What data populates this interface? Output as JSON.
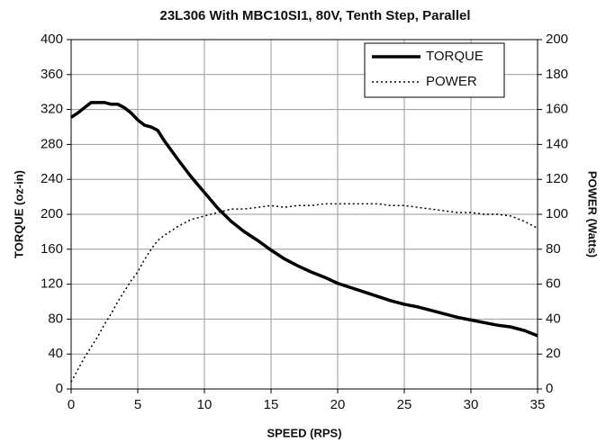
{
  "chart_data": {
    "type": "line",
    "title": "23L306 With MBC10SI1, 80V, Tenth Step, Parallel",
    "x_label": "SPEED (RPS)",
    "y_label": "TORQUE (oz-in)",
    "y2_label": "POWER (Watts)",
    "x": [
      0,
      0.5,
      1,
      1.5,
      2,
      2.5,
      3,
      3.5,
      4,
      4.5,
      5,
      5.5,
      6,
      6.5,
      7,
      8,
      9,
      10,
      11,
      12,
      13,
      14,
      15,
      16,
      17,
      18,
      19,
      20,
      21,
      22,
      23,
      24,
      25,
      26,
      27,
      28,
      29,
      30,
      31,
      32,
      33,
      34,
      35
    ],
    "series": [
      {
        "name": "TORQUE",
        "color": "#000000",
        "style": "solid",
        "values": [
          311,
          316,
          322,
          328,
          328,
          328,
          326,
          326,
          322,
          316,
          308,
          302,
          300,
          296,
          284,
          263,
          243,
          225,
          207,
          192,
          180,
          170,
          159,
          149,
          141,
          134,
          128,
          121,
          116,
          111,
          106,
          101,
          97,
          94,
          90,
          86,
          82,
          79,
          76,
          73,
          71,
          67,
          61
        ]
      },
      {
        "name": "POWER",
        "color": "#000000",
        "style": "dotted",
        "axis": "y2",
        "values": [
          4,
          11,
          18,
          24,
          30,
          37,
          43,
          50,
          56,
          62,
          67,
          74,
          80,
          85,
          88,
          93,
          97,
          99,
          101,
          103,
          103,
          104,
          105,
          104,
          105,
          105,
          106,
          106,
          106,
          106,
          106,
          105,
          105,
          104,
          103,
          102,
          101,
          101,
          100,
          100,
          99,
          96,
          92
        ]
      }
    ],
    "xlim": [
      0,
      35
    ],
    "xticks": [
      0,
      5,
      10,
      15,
      20,
      25,
      30,
      35
    ],
    "ylim": [
      0,
      400
    ],
    "yticks": [
      0,
      40,
      80,
      120,
      160,
      200,
      240,
      280,
      320,
      360,
      400
    ],
    "y2lim": [
      0,
      200
    ],
    "y2ticks": [
      0,
      20,
      40,
      60,
      80,
      100,
      120,
      140,
      160,
      180,
      200
    ],
    "grid": true,
    "legend": "upper right"
  }
}
